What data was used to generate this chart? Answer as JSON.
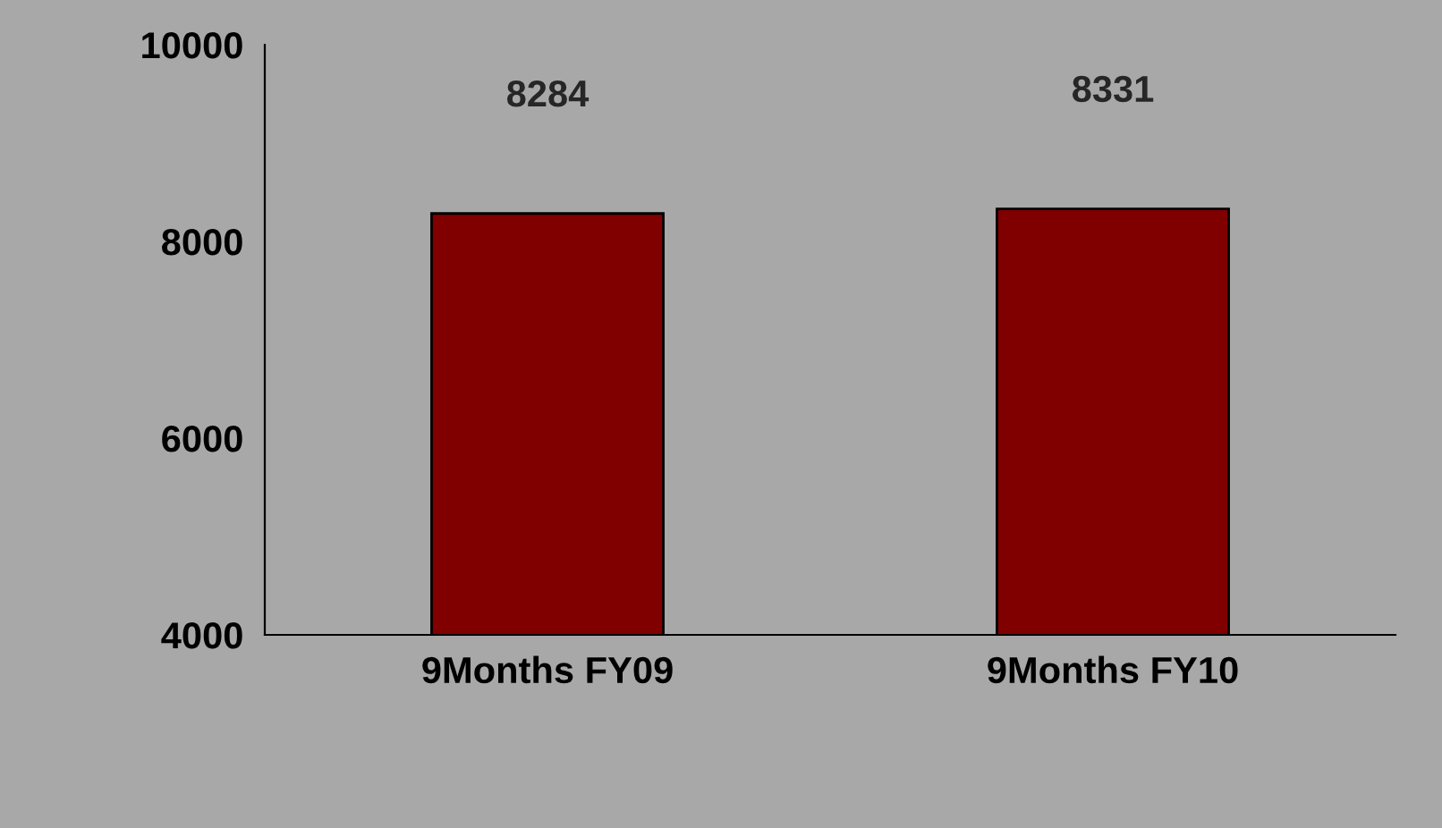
{
  "chart_data": {
    "type": "bar",
    "categories": [
      "9Months FY09",
      "9Months FY10"
    ],
    "values": [
      8284,
      8331
    ],
    "color": "#800000",
    "ylim": [
      4000,
      10000
    ],
    "yticks": [
      4000,
      6000,
      8000,
      10000
    ],
    "grid": false,
    "data_labels": true,
    "legend": false
  }
}
